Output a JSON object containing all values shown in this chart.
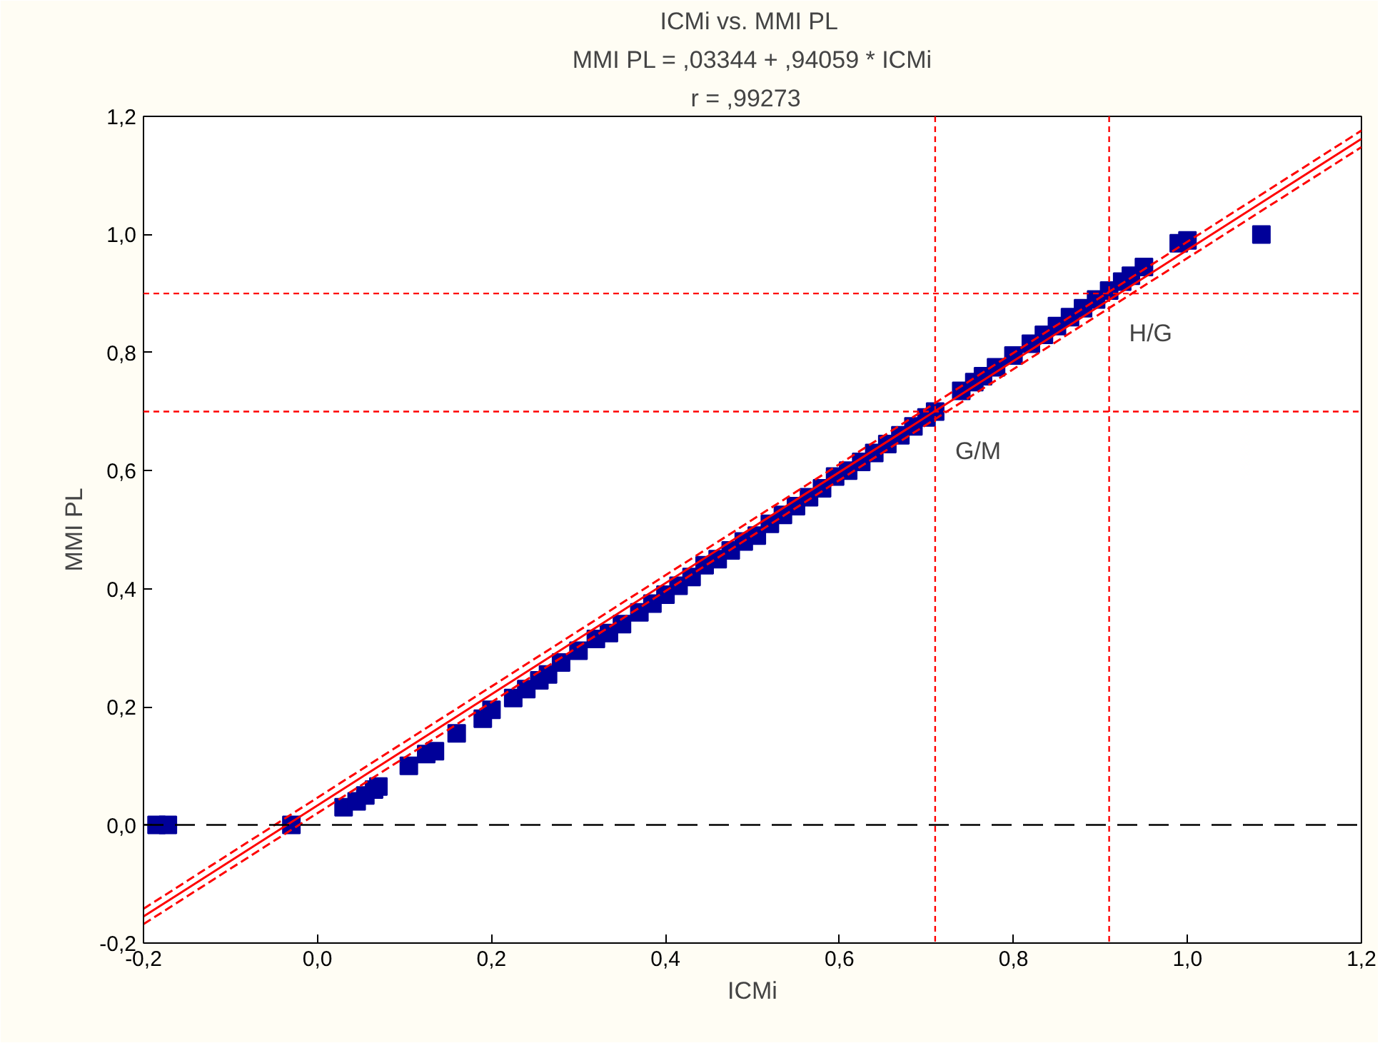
{
  "chart_data": {
    "type": "scatter",
    "title": "ICMi  vs. MMI PL",
    "subtitle": "MMI PL = ,03344 + ,94059 * ICMi",
    "annotations": [
      "r =   ,99273"
    ],
    "xlabel": "ICMi",
    "ylabel": "MMI PL",
    "xlim": [
      -0.2,
      1.2
    ],
    "ylim": [
      -0.2,
      1.2
    ],
    "xticks": [
      {
        "value": -0.2,
        "label": "-0,2"
      },
      {
        "value": 0.0,
        "label": "0,0"
      },
      {
        "value": 0.2,
        "label": "0,2"
      },
      {
        "value": 0.4,
        "label": "0,4"
      },
      {
        "value": 0.6,
        "label": "0,6"
      },
      {
        "value": 0.8,
        "label": "0,8"
      },
      {
        "value": 1.0,
        "label": "1,0"
      },
      {
        "value": 1.2,
        "label": "1,2"
      }
    ],
    "yticks": [
      {
        "value": -0.2,
        "label": "-0,2"
      },
      {
        "value": 0.0,
        "label": "0,0"
      },
      {
        "value": 0.2,
        "label": "0,2"
      },
      {
        "value": 0.4,
        "label": "0,4"
      },
      {
        "value": 0.6,
        "label": "0,6"
      },
      {
        "value": 0.8,
        "label": "0,8"
      },
      {
        "value": 1.0,
        "label": "1,0"
      },
      {
        "value": 1.2,
        "label": "1,2"
      }
    ],
    "grid": false,
    "series": [
      {
        "marker": "square",
        "color": "#000099",
        "x": [
          -0.185,
          -0.172,
          -0.03,
          0.03,
          0.045,
          0.055,
          0.065,
          0.07,
          0.105,
          0.125,
          0.135,
          0.16,
          0.19,
          0.2,
          0.225,
          0.24,
          0.255,
          0.265,
          0.28,
          0.3,
          0.32,
          0.335,
          0.35,
          0.37,
          0.385,
          0.4,
          0.415,
          0.43,
          0.445,
          0.46,
          0.475,
          0.49,
          0.505,
          0.52,
          0.535,
          0.55,
          0.565,
          0.58,
          0.595,
          0.61,
          0.625,
          0.64,
          0.655,
          0.67,
          0.685,
          0.7,
          0.71,
          0.74,
          0.755,
          0.765,
          0.78,
          0.8,
          0.82,
          0.835,
          0.85,
          0.865,
          0.88,
          0.895,
          0.91,
          0.925,
          0.935,
          0.95,
          0.99,
          1.0,
          1.085
        ],
        "values": [
          0.0,
          0.0,
          0.0,
          0.03,
          0.04,
          0.05,
          0.06,
          0.065,
          0.1,
          0.12,
          0.125,
          0.155,
          0.18,
          0.195,
          0.215,
          0.23,
          0.245,
          0.255,
          0.275,
          0.295,
          0.315,
          0.325,
          0.34,
          0.36,
          0.375,
          0.39,
          0.405,
          0.42,
          0.44,
          0.45,
          0.465,
          0.48,
          0.49,
          0.51,
          0.525,
          0.54,
          0.555,
          0.57,
          0.59,
          0.6,
          0.615,
          0.63,
          0.645,
          0.66,
          0.675,
          0.69,
          0.7,
          0.735,
          0.75,
          0.76,
          0.775,
          0.795,
          0.815,
          0.83,
          0.845,
          0.86,
          0.875,
          0.89,
          0.905,
          0.92,
          0.93,
          0.945,
          0.985,
          0.99,
          1.0
        ]
      },
      {
        "type": "line",
        "color": "#ff0000",
        "line_style": "solid",
        "x": [
          -0.2,
          1.2
        ],
        "values": [
          -0.155,
          1.162
        ]
      },
      {
        "type": "line",
        "color": "#ff0000",
        "line_style": "dashed",
        "x": [
          -0.2,
          1.2
        ],
        "values": [
          -0.142,
          1.176
        ]
      },
      {
        "type": "line",
        "color": "#ff0000",
        "line_style": "dashed",
        "x": [
          -0.2,
          1.2
        ],
        "values": [
          -0.168,
          1.148
        ]
      }
    ],
    "ref_lines": [
      {
        "axis": "y",
        "value": 0.0,
        "color": "#000000",
        "line_style": "dashed"
      },
      {
        "axis": "y",
        "value": 0.7,
        "color": "#ff0000",
        "line_style": "dotted"
      },
      {
        "axis": "y",
        "value": 0.9,
        "color": "#ff0000",
        "line_style": "dotted"
      },
      {
        "axis": "x",
        "value": 0.71,
        "color": "#ff0000",
        "line_style": "dotted",
        "label": "G/M"
      },
      {
        "axis": "x",
        "value": 0.91,
        "color": "#ff0000",
        "line_style": "dotted",
        "label": "H/G"
      }
    ]
  }
}
